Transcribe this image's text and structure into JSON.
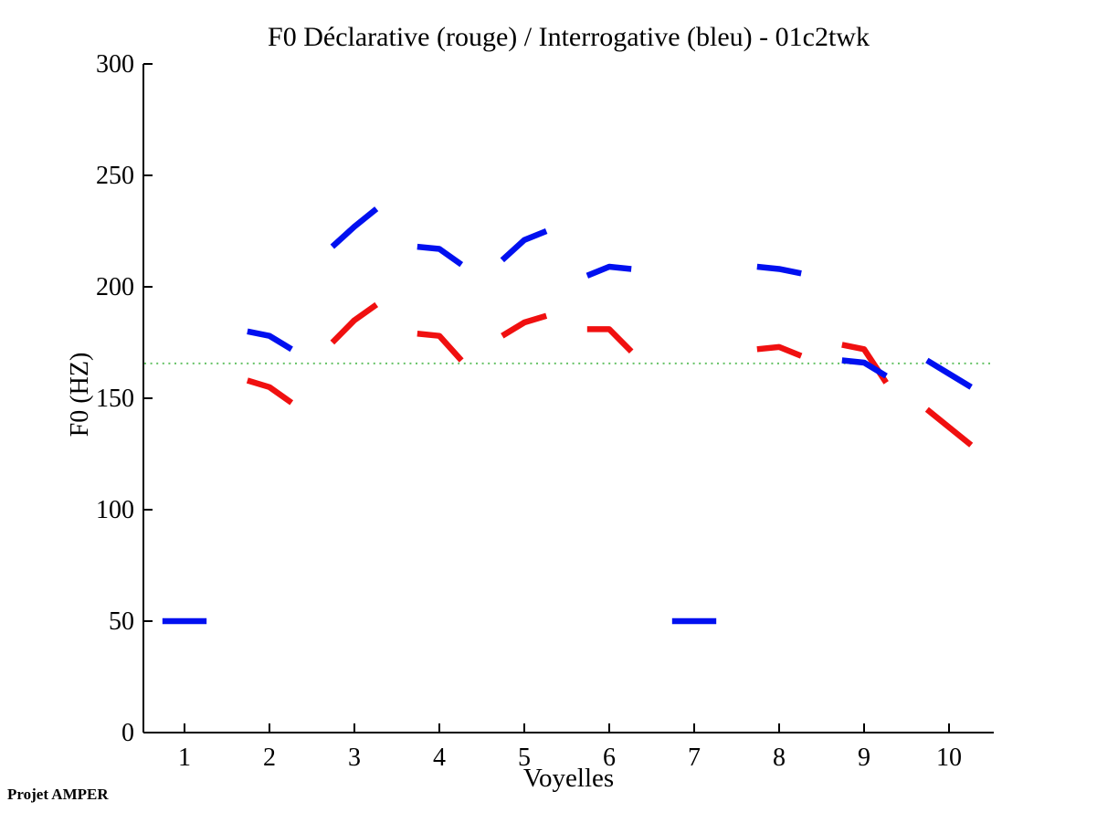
{
  "chart_data": {
    "type": "line",
    "title": "F0 Déclarative (rouge) / Interrogative (bleu) - 01c2twk",
    "xlabel": "Voyelles",
    "ylabel": "F0 (HZ)",
    "footer": "Projet AMPER",
    "xlim": [
      0.5,
      10.5
    ],
    "ylim": [
      0,
      300
    ],
    "xticks": [
      1,
      2,
      3,
      4,
      5,
      6,
      7,
      8,
      9,
      10
    ],
    "yticks": [
      0,
      50,
      100,
      150,
      200,
      250,
      300
    ],
    "grid": false,
    "legend": "encoded in title: déclarative = rouge (red), interrogative = bleu (blue)",
    "reference_line": {
      "y": 165.6,
      "color": "#66c266",
      "style": "dotted"
    },
    "segment_half_width": 0.26,
    "series": [
      {
        "name": "Déclarative (rouge)",
        "color": "#f01010",
        "segments": [
          {
            "vowel": 2,
            "f0": [
              158,
              155,
              148
            ]
          },
          {
            "vowel": 3,
            "f0": [
              175,
              185,
              192
            ]
          },
          {
            "vowel": 4,
            "f0": [
              179,
              178,
              167
            ]
          },
          {
            "vowel": 5,
            "f0": [
              178,
              184,
              187
            ]
          },
          {
            "vowel": 6,
            "f0": [
              181,
              181,
              171
            ]
          },
          {
            "vowel": 8,
            "f0": [
              172,
              173,
              169
            ]
          },
          {
            "vowel": 9,
            "f0": [
              174,
              172,
              157
            ]
          },
          {
            "vowel": 10,
            "f0": [
              145,
              137,
              129
            ]
          }
        ]
      },
      {
        "name": "Interrogative (bleu)",
        "color": "#0010f0",
        "segments": [
          {
            "vowel": 1,
            "f0": [
              50,
              50,
              50
            ]
          },
          {
            "vowel": 2,
            "f0": [
              180,
              178,
              172
            ]
          },
          {
            "vowel": 3,
            "f0": [
              218,
              227,
              235
            ]
          },
          {
            "vowel": 4,
            "f0": [
              218,
              217,
              210
            ]
          },
          {
            "vowel": 5,
            "f0": [
              212,
              221,
              225
            ]
          },
          {
            "vowel": 6,
            "f0": [
              205,
              209,
              208
            ]
          },
          {
            "vowel": 7,
            "f0": [
              50,
              50,
              50
            ]
          },
          {
            "vowel": 8,
            "f0": [
              209,
              208,
              206
            ]
          },
          {
            "vowel": 9,
            "f0": [
              167,
              166,
              160
            ]
          },
          {
            "vowel": 10,
            "f0": [
              167,
              161,
              155
            ]
          }
        ]
      }
    ]
  }
}
